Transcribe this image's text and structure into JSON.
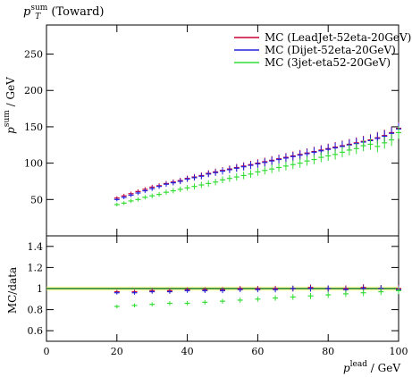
{
  "title": {
    "main": "p",
    "sub": "T",
    "sup": "sum",
    "suffix": " (Toward)"
  },
  "top_ylabel": {
    "main": "p",
    "sub": "T",
    "sup": "sum",
    "suffix": " / GeV"
  },
  "bottom_ylabel": "MC/data",
  "xlabel": {
    "main": "p",
    "sub": "T",
    "sup": "lead",
    "suffix": " / GeV"
  },
  "chart_data": [
    {
      "type": "scatter",
      "panel": "main",
      "xlim": [
        0,
        100
      ],
      "ylim": [
        0,
        290
      ],
      "xticks": [
        0,
        20,
        40,
        60,
        80,
        100
      ],
      "yticks": [
        50,
        100,
        150,
        200,
        250
      ],
      "legend_position": "top-right",
      "series": [
        {
          "name": "MC (LeadJet-52eta-20GeV)",
          "color": "#cc0033",
          "x": [
            20,
            22,
            24,
            26,
            28,
            30,
            32,
            34,
            36,
            38,
            40,
            42,
            44,
            46,
            48,
            50,
            52,
            54,
            56,
            58,
            60,
            62,
            64,
            66,
            68,
            70,
            72,
            74,
            76,
            78,
            80,
            82,
            84,
            86,
            88,
            90,
            92,
            94,
            96,
            98,
            100
          ],
          "y": [
            52,
            55,
            58,
            61,
            64,
            67,
            69,
            72,
            74,
            76,
            79,
            81,
            83,
            86,
            88,
            90,
            92,
            94,
            96,
            98,
            100,
            102,
            104,
            106,
            108,
            110,
            112,
            114,
            116,
            118,
            120,
            122,
            124,
            126,
            128,
            130,
            132,
            135,
            138,
            142,
            148
          ]
        },
        {
          "name": "MC (Dijet-52eta-20GeV)",
          "color": "#2222dd",
          "x": [
            20,
            22,
            24,
            26,
            28,
            30,
            32,
            34,
            36,
            38,
            40,
            42,
            44,
            46,
            48,
            50,
            52,
            54,
            56,
            58,
            60,
            62,
            64,
            66,
            68,
            70,
            72,
            74,
            76,
            78,
            80,
            82,
            84,
            86,
            88,
            90,
            92,
            94,
            96,
            98,
            100
          ],
          "y": [
            50,
            53,
            56,
            59,
            62,
            65,
            68,
            71,
            73,
            75,
            78,
            80,
            82,
            85,
            87,
            89,
            91,
            93,
            95,
            97,
            99,
            101,
            103,
            105,
            107,
            109,
            111,
            113,
            115,
            117,
            119,
            121,
            123,
            125,
            127,
            129,
            131,
            134,
            137,
            141,
            147
          ]
        },
        {
          "name": "MC (3jet-eta52-20GeV)",
          "color": "#33dd33",
          "x": [
            20,
            22,
            24,
            26,
            28,
            30,
            32,
            34,
            36,
            38,
            40,
            42,
            44,
            46,
            48,
            50,
            52,
            54,
            56,
            58,
            60,
            62,
            64,
            66,
            68,
            70,
            72,
            74,
            76,
            78,
            80,
            82,
            84,
            86,
            88,
            90,
            92,
            94,
            96,
            98,
            100
          ],
          "y": [
            43,
            45,
            48,
            50,
            53,
            55,
            57,
            60,
            62,
            64,
            66,
            68,
            70,
            72,
            74,
            77,
            79,
            81,
            83,
            85,
            88,
            90,
            92,
            94,
            96,
            98,
            100,
            103,
            105,
            108,
            110,
            112,
            115,
            118,
            120,
            124,
            126,
            123,
            128,
            132,
            142
          ]
        }
      ]
    },
    {
      "type": "scatter",
      "panel": "ratio",
      "xlim": [
        0,
        100
      ],
      "ylim": [
        0.5,
        1.5
      ],
      "xticks": [
        0,
        20,
        40,
        60,
        80,
        100
      ],
      "yticks": [
        0.6,
        0.8,
        1,
        1.2,
        1.4
      ],
      "series": [
        {
          "name": "MC (LeadJet-52eta-20GeV)",
          "color": "#cc0033",
          "x": [
            20,
            25,
            30,
            35,
            40,
            45,
            50,
            55,
            60,
            65,
            70,
            75,
            80,
            85,
            90,
            95,
            100
          ],
          "y": [
            0.97,
            0.97,
            0.98,
            0.98,
            0.99,
            0.99,
            0.99,
            1.0,
            1.0,
            1.0,
            1.0,
            1.01,
            1.0,
            1.0,
            1.01,
            1.0,
            1.0
          ]
        },
        {
          "name": "MC (Dijet-52eta-20GeV)",
          "color": "#2222dd",
          "x": [
            20,
            25,
            30,
            35,
            40,
            45,
            50,
            55,
            60,
            65,
            70,
            75,
            80,
            85,
            90,
            95,
            100
          ],
          "y": [
            0.96,
            0.96,
            0.97,
            0.97,
            0.98,
            0.98,
            0.98,
            0.99,
            0.99,
            0.99,
            1.0,
            1.0,
            1.0,
            0.99,
            1.0,
            1.0,
            0.99
          ]
        },
        {
          "name": "MC (3jet-eta52-20GeV)",
          "color": "#33dd33",
          "x": [
            20,
            25,
            30,
            35,
            40,
            45,
            50,
            55,
            60,
            65,
            70,
            75,
            80,
            85,
            90,
            95,
            100
          ],
          "y": [
            0.83,
            0.84,
            0.85,
            0.86,
            0.86,
            0.87,
            0.88,
            0.89,
            0.9,
            0.91,
            0.92,
            0.93,
            0.94,
            0.95,
            0.96,
            0.97,
            0.98
          ]
        }
      ]
    }
  ]
}
